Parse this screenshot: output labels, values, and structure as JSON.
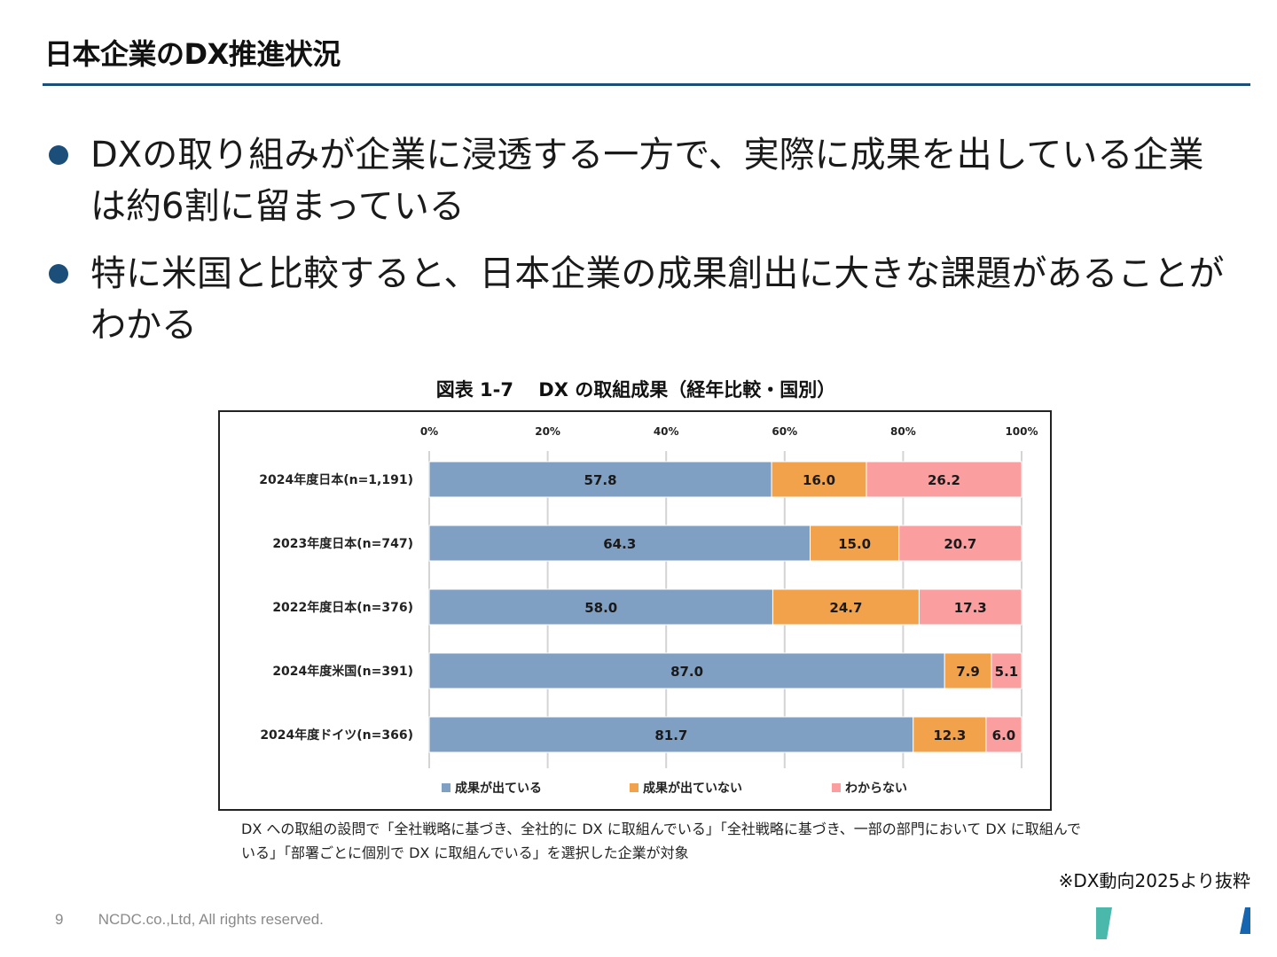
{
  "slide": {
    "title": "日本企業のDX推進状況",
    "bullets": [
      "DXの取り組みが企業に浸透する一方で、実際に成果を出している企業は約6割に留まっている",
      "特に米国と比較すると、日本企業の成果創出に大きな課題があることがわかる"
    ],
    "figure_caption": "図表 1-7　 DX の取組成果（経年比較・国別）",
    "note": "DX への取組の設問で「全社戦略に基づき、全社的に DX に取組んでいる」「全社戦略に基づき、一部の部門において DX に取組んでいる」「部署ごとに個別で DX に取組んでいる」を選択した企業が対象",
    "source": "※DX動向2025より抜粋",
    "page_number": "9",
    "copyright": "NCDC.co.,Ltd, All rights reserved.",
    "colors": {
      "accent": "#1b4f7a",
      "deco_teal": "#4bb8ac",
      "deco_blue": "#1565b0"
    }
  },
  "chart_data": {
    "type": "bar",
    "orientation": "horizontal",
    "stacked": "percent",
    "title": "DX の取組成果（経年比較・国別）",
    "xlim": [
      0,
      100
    ],
    "x_ticks": [
      "0%",
      "20%",
      "40%",
      "60%",
      "80%",
      "100%"
    ],
    "categories": [
      "2024年度日本(n=1,191)",
      "2023年度日本(n=747)",
      "2022年度日本(n=376)",
      "2024年度米国(n=391)",
      "2024年度ドイツ(n=366)"
    ],
    "series": [
      {
        "name": "成果が出ている",
        "color": "#7f9fc3",
        "values": [
          57.8,
          64.3,
          58.0,
          87.0,
          81.7
        ],
        "labels": [
          "57.8",
          "64.3",
          "58.0",
          "87.0",
          "81.7"
        ]
      },
      {
        "name": "成果が出ていない",
        "color": "#f2a24a",
        "values": [
          16.0,
          15.0,
          24.7,
          7.9,
          12.3
        ],
        "labels": [
          "16.0",
          "15.0",
          "24.7",
          "7.9",
          "12.3"
        ]
      },
      {
        "name": "わからない",
        "color": "#fb9ea0",
        "values": [
          26.2,
          20.7,
          17.3,
          5.1,
          6.0
        ],
        "labels": [
          "26.2",
          "20.7",
          "17.3",
          "5.1",
          "6.0"
        ]
      }
    ],
    "legend_position": "bottom",
    "grid": true
  }
}
